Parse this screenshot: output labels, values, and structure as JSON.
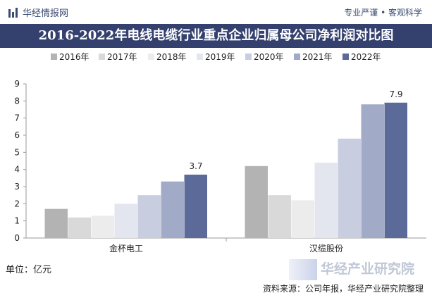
{
  "header": {
    "brand": "华经情报网",
    "slogan": "专业严谨 • 客观科学"
  },
  "chart_data": {
    "type": "bar",
    "title": "2016-2022年电线电缆行业重点企业归属母公司净利润对比图",
    "categories": [
      "金杯电工",
      "汉缆股份"
    ],
    "series": [
      {
        "name": "2016年",
        "color": "#b3b3b3",
        "values": [
          1.7,
          4.2
        ]
      },
      {
        "name": "2017年",
        "color": "#d9d9d9",
        "values": [
          1.2,
          2.5
        ]
      },
      {
        "name": "2018年",
        "color": "#ececec",
        "values": [
          1.3,
          2.2
        ]
      },
      {
        "name": "2019年",
        "color": "#e3e6ef",
        "values": [
          2.0,
          4.4
        ]
      },
      {
        "name": "2020年",
        "color": "#c8cddf",
        "values": [
          2.5,
          5.8
        ]
      },
      {
        "name": "2021年",
        "color": "#a1abc8",
        "values": [
          3.3,
          7.8
        ]
      },
      {
        "name": "2022年",
        "color": "#5b6a99",
        "values": [
          3.7,
          7.9
        ]
      }
    ],
    "data_labels": [
      {
        "series": 6,
        "category": 0,
        "text": "3.7"
      },
      {
        "series": 6,
        "category": 1,
        "text": "7.9"
      }
    ],
    "ylim": [
      0,
      9
    ],
    "yticks": [
      "0",
      "1",
      "2",
      "3",
      "4",
      "5",
      "6",
      "7",
      "8",
      "9"
    ],
    "legend_position": "top",
    "grid": false
  },
  "footer": {
    "unit": "单位：亿元",
    "source": "资料来源：公司年报，华经产业研究院整理"
  },
  "watermark": {
    "text": "华经产业研究院"
  }
}
